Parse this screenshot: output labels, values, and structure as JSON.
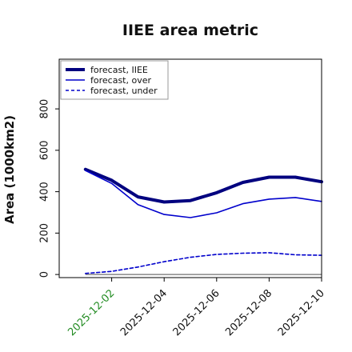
{
  "chart_data": {
    "type": "line",
    "title": "IIEE area metric",
    "xlabel": "",
    "ylabel": "Area (1000km2)",
    "x": [
      "2025-12-01",
      "2025-12-02",
      "2025-12-03",
      "2025-12-04",
      "2025-12-05",
      "2025-12-06",
      "2025-12-07",
      "2025-12-08",
      "2025-12-09",
      "2025-12-10"
    ],
    "x_tick_labels": [
      "2025-12-02",
      "2025-12-04",
      "2025-12-06",
      "2025-12-08",
      "2025-12-10"
    ],
    "x_tick_dates": [
      "2025-12-02",
      "2025-12-04",
      "2025-12-06",
      "2025-12-08",
      "2025-12-10"
    ],
    "highlight_tick": "2025-12-02",
    "highlight_color": "#228b22",
    "xlim": [
      "2025-11-30",
      "2025-12-10"
    ],
    "yticks": [
      0,
      200,
      400,
      600,
      800
    ],
    "ylim": [
      -15,
      1040
    ],
    "grid": false,
    "legend_position": "top-left",
    "series": [
      {
        "name": "forecast, IIEE",
        "color": "#00007f",
        "style": "solid",
        "values": [
          508,
          455,
          375,
          350,
          357,
          395,
          445,
          470,
          470,
          448
        ]
      },
      {
        "name": "forecast, over",
        "color": "#0000cc",
        "style": "solid",
        "values": [
          502,
          440,
          338,
          290,
          275,
          298,
          342,
          364,
          372,
          353
        ]
      },
      {
        "name": "forecast, under",
        "color": "#0000cc",
        "style": "dashed",
        "values": [
          5,
          15,
          36,
          62,
          83,
          97,
          103,
          105,
          95,
          93
        ]
      }
    ],
    "zero_line": {
      "color": "#888888"
    }
  }
}
